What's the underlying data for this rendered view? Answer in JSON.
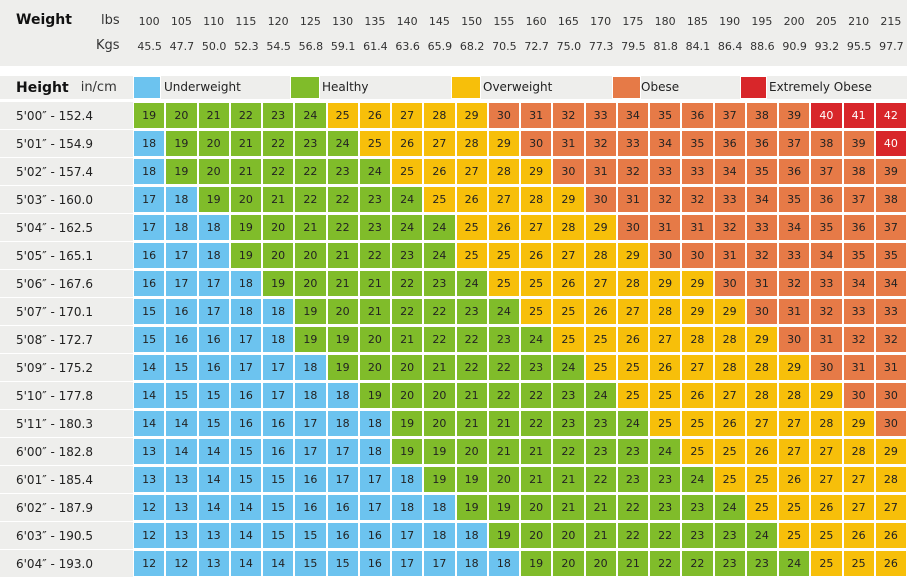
{
  "header": {
    "weight_label": "Weight",
    "lbs_label": "lbs",
    "kgs_label": "Kgs",
    "height_label": "Height",
    "height_units": "in/cm"
  },
  "colors": {
    "underweight": "#6cc3ef",
    "healthy": "#80bc2a",
    "overweight": "#f7bf0a",
    "obese": "#e67a47",
    "extremely_obese": "#d8262a"
  },
  "legend": [
    {
      "key": "underweight",
      "label": "Underweight"
    },
    {
      "key": "healthy",
      "label": "Healthy"
    },
    {
      "key": "overweight",
      "label": "Overweight"
    },
    {
      "key": "obese",
      "label": "Obese"
    },
    {
      "key": "extremely_obese",
      "label": "Extremely Obese"
    }
  ],
  "chart_data": {
    "type": "heatmap",
    "lbs": [
      "100",
      "105",
      "110",
      "115",
      "120",
      "125",
      "130",
      "135",
      "140",
      "145",
      "150",
      "155",
      "160",
      "165",
      "170",
      "175",
      "180",
      "185",
      "190",
      "195",
      "200",
      "205",
      "210",
      "215"
    ],
    "kgs": [
      "45.5",
      "47.7",
      "50.0",
      "52.3",
      "54.5",
      "56.8",
      "59.1",
      "61.4",
      "63.6",
      "65.9",
      "68.2",
      "70.5",
      "72.7",
      "75.0",
      "77.3",
      "79.5",
      "81.8",
      "84.1",
      "86.4",
      "88.6",
      "90.9",
      "93.2",
      "95.5",
      "97.7"
    ],
    "heights": [
      "5'00″ - 152.4",
      "5'01″ - 154.9",
      "5'02″ - 157.4",
      "5'03″ - 160.0",
      "5'04″ - 162.5",
      "5'05″ - 165.1",
      "5'06″ - 167.6",
      "5'07″ - 170.1",
      "5'08″ - 172.7",
      "5'09″ - 175.2",
      "5'10″ - 177.8",
      "5'11″ - 180.3",
      "6'00″ - 182.8",
      "6'01″ - 185.4",
      "6'02″ - 187.9",
      "6'03″ - 190.5",
      "6'04″ - 193.0"
    ],
    "values": [
      [
        19,
        20,
        21,
        22,
        23,
        24,
        25,
        26,
        27,
        28,
        29,
        30,
        31,
        32,
        33,
        34,
        35,
        36,
        37,
        38,
        39,
        40,
        41,
        42
      ],
      [
        18,
        19,
        20,
        21,
        22,
        23,
        24,
        25,
        26,
        27,
        28,
        29,
        30,
        31,
        32,
        33,
        34,
        35,
        36,
        36,
        37,
        38,
        39,
        40
      ],
      [
        18,
        19,
        20,
        21,
        22,
        22,
        23,
        24,
        25,
        26,
        27,
        28,
        29,
        30,
        31,
        32,
        33,
        33,
        34,
        35,
        36,
        37,
        38,
        39
      ],
      [
        17,
        18,
        19,
        20,
        21,
        22,
        22,
        23,
        24,
        25,
        26,
        27,
        28,
        29,
        30,
        31,
        32,
        32,
        33,
        34,
        35,
        36,
        37,
        38
      ],
      [
        17,
        18,
        18,
        19,
        20,
        21,
        22,
        23,
        24,
        24,
        25,
        26,
        27,
        28,
        29,
        30,
        31,
        31,
        32,
        33,
        34,
        35,
        36,
        37
      ],
      [
        16,
        17,
        18,
        19,
        20,
        20,
        21,
        22,
        23,
        24,
        25,
        25,
        26,
        27,
        28,
        29,
        30,
        30,
        31,
        32,
        33,
        34,
        35,
        35
      ],
      [
        16,
        17,
        17,
        18,
        19,
        20,
        21,
        21,
        22,
        23,
        24,
        25,
        25,
        26,
        27,
        28,
        29,
        29,
        30,
        31,
        32,
        33,
        34,
        34
      ],
      [
        15,
        16,
        17,
        18,
        18,
        19,
        20,
        21,
        22,
        22,
        23,
        24,
        25,
        25,
        26,
        27,
        28,
        29,
        29,
        30,
        31,
        32,
        33,
        33
      ],
      [
        15,
        16,
        16,
        17,
        18,
        19,
        19,
        20,
        21,
        22,
        22,
        23,
        24,
        25,
        25,
        26,
        27,
        28,
        28,
        29,
        30,
        31,
        32,
        32
      ],
      [
        14,
        15,
        16,
        17,
        17,
        18,
        19,
        20,
        20,
        21,
        22,
        22,
        23,
        24,
        25,
        25,
        26,
        27,
        28,
        28,
        29,
        30,
        31,
        31
      ],
      [
        14,
        15,
        15,
        16,
        17,
        18,
        18,
        19,
        20,
        20,
        21,
        22,
        22,
        23,
        24,
        25,
        25,
        26,
        27,
        28,
        28,
        29,
        30,
        30
      ],
      [
        14,
        14,
        15,
        16,
        16,
        17,
        18,
        18,
        19,
        20,
        21,
        21,
        22,
        23,
        23,
        24,
        25,
        25,
        26,
        27,
        27,
        28,
        29,
        30
      ],
      [
        13,
        14,
        14,
        15,
        16,
        17,
        17,
        18,
        19,
        19,
        20,
        21,
        21,
        22,
        23,
        23,
        24,
        25,
        25,
        26,
        27,
        27,
        28,
        29
      ],
      [
        13,
        13,
        14,
        15,
        15,
        16,
        17,
        17,
        18,
        19,
        19,
        20,
        21,
        21,
        22,
        23,
        23,
        24,
        25,
        25,
        26,
        27,
        27,
        28
      ],
      [
        12,
        13,
        14,
        14,
        15,
        16,
        16,
        17,
        18,
        18,
        19,
        19,
        20,
        21,
        21,
        22,
        23,
        23,
        24,
        25,
        25,
        26,
        27,
        27
      ],
      [
        12,
        13,
        13,
        14,
        15,
        15,
        16,
        16,
        17,
        18,
        18,
        19,
        20,
        20,
        21,
        22,
        22,
        23,
        23,
        24,
        25,
        25,
        26,
        26
      ],
      [
        12,
        12,
        13,
        14,
        14,
        15,
        15,
        16,
        17,
        17,
        18,
        18,
        19,
        20,
        20,
        21,
        22,
        22,
        23,
        23,
        24,
        25,
        25,
        26
      ]
    ]
  }
}
